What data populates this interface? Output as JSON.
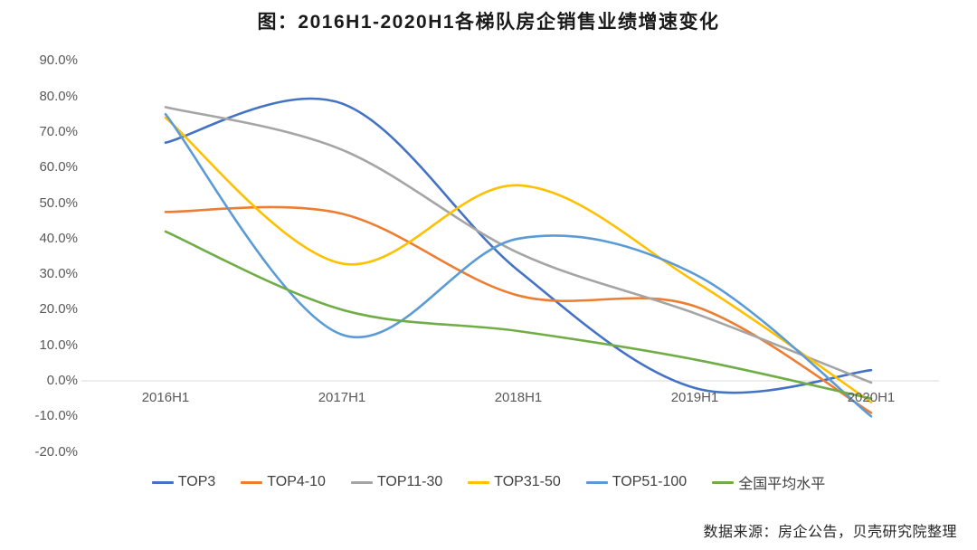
{
  "title": "图：2016H1-2020H1各梯队房企销售业绩增速变化",
  "source": "数据来源：房企公告，贝壳研究院整理",
  "chart_data": {
    "type": "line",
    "title": "图：2016H1-2020H1各梯队房企销售业绩增速变化",
    "categories": [
      "2016H1",
      "2017H1",
      "2018H1",
      "2019H1",
      "2020H1"
    ],
    "series": [
      {
        "name": "TOP3",
        "color": "#4472C4",
        "values": [
          67,
          78,
          31,
          -2,
          3
        ]
      },
      {
        "name": "TOP4-10",
        "color": "#ED7D31",
        "values": [
          47.5,
          47,
          24,
          21,
          -9
        ]
      },
      {
        "name": "TOP11-30",
        "color": "#A5A5A5",
        "values": [
          77,
          65,
          36,
          19,
          -0.5
        ]
      },
      {
        "name": "TOP31-50",
        "color": "#FFC000",
        "values": [
          74,
          33,
          55,
          28,
          -6
        ]
      },
      {
        "name": "TOP51-100",
        "color": "#5B9BD5",
        "values": [
          75,
          13,
          40,
          30,
          -10
        ]
      },
      {
        "name": "全国平均水平",
        "color": "#70AD47",
        "values": [
          42,
          20,
          14,
          6,
          -5
        ]
      }
    ],
    "yticks": [
      {
        "label": "90.0%",
        "value": 90
      },
      {
        "label": "80.0%",
        "value": 80
      },
      {
        "label": "70.0%",
        "value": 70
      },
      {
        "label": "60.0%",
        "value": 60
      },
      {
        "label": "50.0%",
        "value": 50
      },
      {
        "label": "40.0%",
        "value": 40
      },
      {
        "label": "30.0%",
        "value": 30
      },
      {
        "label": "20.0%",
        "value": 20
      },
      {
        "label": "10.0%",
        "value": 10
      },
      {
        "label": "0.0%",
        "value": 0
      },
      {
        "label": "-10.0%",
        "value": -10
      },
      {
        "label": "-20.0%",
        "value": -20
      }
    ],
    "ylim": [
      -20,
      90
    ],
    "xlabel": "",
    "ylabel": "",
    "grid": "horizontal baseline at 0% only",
    "gridline_color": "#D9D9D9",
    "line_style": "smoothed",
    "legend_position": "bottom"
  }
}
